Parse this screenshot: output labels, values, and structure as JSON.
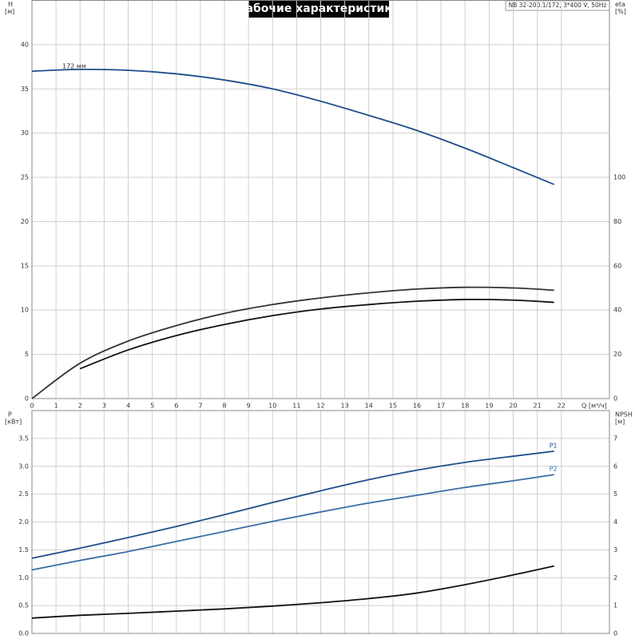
{
  "chart_data": [
    {
      "type": "line",
      "title": "Рабочие характеристики",
      "model": "NB 32-200.1/172, 3*400 V, 50Hz",
      "ylabel": "H",
      "yunit": "[м]",
      "y2label": "eta",
      "y2unit": "[%]",
      "xlabel": "Q [м³/ч]",
      "xlim": [
        0,
        24
      ],
      "xticks": [
        0,
        1,
        2,
        3,
        4,
        5,
        6,
        7,
        8,
        9,
        10,
        11,
        12,
        13,
        14,
        15,
        16,
        17,
        18,
        19,
        20,
        21,
        22
      ],
      "ylim": [
        0,
        45
      ],
      "yticks": [
        0,
        5,
        10,
        15,
        20,
        25,
        30,
        35,
        40
      ],
      "y2lim": [
        0,
        180
      ],
      "y2ticks": [
        0,
        20,
        40,
        60,
        80,
        100
      ],
      "grid": true,
      "series": [
        {
          "name": "172 мм",
          "color": "#1f4e8c",
          "x": [
            0,
            2,
            4,
            6,
            8,
            10,
            12,
            14,
            16,
            18,
            20,
            21.7
          ],
          "values": [
            37.0,
            37.2,
            37.1,
            36.7,
            36.0,
            35.0,
            33.6,
            32.0,
            30.3,
            28.3,
            26.1,
            24.2
          ]
        },
        {
          "color": "#333333",
          "axis": "y2",
          "x": [
            0,
            2,
            4,
            6,
            8,
            10,
            12,
            14,
            16,
            18,
            20,
            21.7
          ],
          "values": [
            0,
            16,
            26,
            33,
            38.5,
            42.5,
            45.5,
            47.8,
            49.5,
            50.3,
            50,
            49
          ]
        },
        {
          "color": "#111111",
          "axis": "y2",
          "x": [
            2,
            4,
            6,
            8,
            10,
            12,
            14,
            16,
            18,
            20,
            21.7
          ],
          "values": [
            13.5,
            22,
            28.5,
            33.5,
            37.5,
            40.5,
            42.5,
            44,
            44.8,
            44.5,
            43.5
          ]
        }
      ]
    },
    {
      "type": "line",
      "ylabel": "P",
      "yunit": "[кВт]",
      "y2label": "NPSH",
      "y2unit": "[м]",
      "xlim": [
        0,
        24
      ],
      "xticks": [
        0,
        1,
        2,
        3,
        4,
        5,
        6,
        7,
        8,
        9,
        10,
        11,
        12,
        13,
        14,
        15,
        16,
        17,
        18,
        19,
        20,
        21,
        22
      ],
      "ylim": [
        0,
        4
      ],
      "yticks": [
        {
          "value": 0,
          "label": "0.0"
        },
        0.5,
        {
          "value": 1,
          "label": "1.0"
        },
        1.5,
        {
          "value": 2,
          "label": "2.0"
        },
        2.5,
        {
          "value": 3,
          "label": "3.0"
        },
        3.5
      ],
      "y2lim": [
        0,
        8
      ],
      "y2ticks": [
        0,
        1,
        2,
        3,
        4,
        5,
        6,
        7
      ],
      "grid": true,
      "series": [
        {
          "name": "P1",
          "color": "#1f4e8c",
          "x": [
            0,
            2,
            4,
            6,
            8,
            10,
            12,
            14,
            16,
            18,
            20,
            21.7
          ],
          "values": [
            1.35,
            1.53,
            1.72,
            1.92,
            2.13,
            2.35,
            2.56,
            2.76,
            2.93,
            3.07,
            3.18,
            3.27
          ]
        },
        {
          "name": "P2",
          "color": "#3a6ea5",
          "x": [
            0,
            2,
            4,
            6,
            8,
            10,
            12,
            14,
            16,
            18,
            20,
            21.7
          ],
          "values": [
            1.14,
            1.31,
            1.47,
            1.65,
            1.83,
            2.01,
            2.18,
            2.34,
            2.48,
            2.62,
            2.74,
            2.85
          ]
        },
        {
          "color": "#111111",
          "axis": "y2",
          "x": [
            0,
            2,
            4,
            6,
            8,
            10,
            12,
            14,
            16,
            18,
            20,
            21.7
          ],
          "values": [
            0.55,
            0.65,
            0.72,
            0.8,
            0.88,
            0.98,
            1.1,
            1.25,
            1.45,
            1.75,
            2.1,
            2.42
          ]
        }
      ]
    }
  ]
}
